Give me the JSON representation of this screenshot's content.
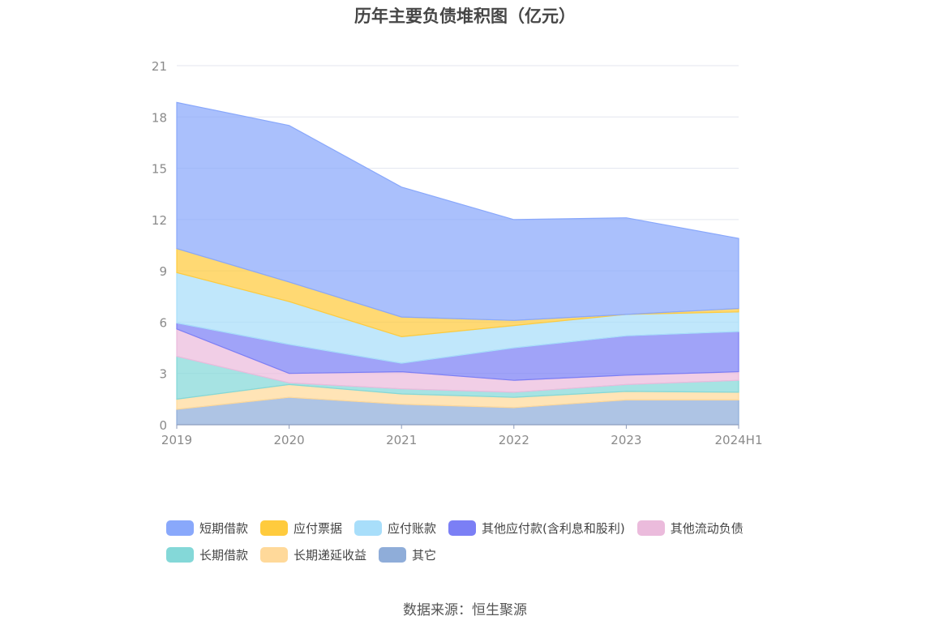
{
  "chart_data": {
    "type": "area",
    "stacked": true,
    "title": "历年主要负债堆积图（亿元）",
    "categories": [
      "2019",
      "2020",
      "2021",
      "2022",
      "2023",
      "2024H1"
    ],
    "ylim": [
      0,
      21
    ],
    "yticks": [
      "0",
      "3",
      "6",
      "9",
      "12",
      "15",
      "18",
      "21"
    ],
    "grid": true,
    "legend_position": "bottom",
    "series": [
      {
        "name": "其它",
        "color": "#8fadd9",
        "values": [
          0.9,
          1.6,
          1.2,
          1.0,
          1.45,
          1.45
        ]
      },
      {
        "name": "长期递延收益",
        "color": "#ffd99a",
        "values": [
          0.6,
          0.75,
          0.6,
          0.6,
          0.5,
          0.45
        ]
      },
      {
        "name": "长期借款",
        "color": "#84d8d8",
        "values": [
          2.5,
          0.1,
          0.3,
          0.3,
          0.4,
          0.7
        ]
      },
      {
        "name": "其他流动负债",
        "color": "#ebbbdc",
        "values": [
          1.6,
          0.55,
          1.0,
          0.7,
          0.55,
          0.5
        ]
      },
      {
        "name": "其他应付款(含利息和股利)",
        "color": "#7b7ff5",
        "values": [
          0.35,
          1.7,
          0.5,
          1.9,
          2.3,
          2.35
        ]
      },
      {
        "name": "应付账款",
        "color": "#a8defa",
        "values": [
          2.95,
          2.5,
          1.55,
          1.3,
          1.25,
          1.15
        ]
      },
      {
        "name": "应付票据",
        "color": "#ffcb3d",
        "values": [
          1.4,
          1.15,
          1.15,
          0.3,
          0.0,
          0.2
        ]
      },
      {
        "name": "短期借款",
        "color": "#89a8fb",
        "values": [
          8.55,
          9.15,
          7.6,
          5.9,
          5.65,
          4.1
        ]
      }
    ]
  },
  "legend": {
    "rows": [
      [
        {
          "label": "短期借款",
          "color": "#89a8fb"
        },
        {
          "label": "应付票据",
          "color": "#ffcb3d"
        },
        {
          "label": "应付账款",
          "color": "#a8defa"
        },
        {
          "label": "其他应付款(含利息和股利)",
          "color": "#7b7ff5"
        },
        {
          "label": "其他流动负债",
          "color": "#ebbbdc"
        }
      ],
      [
        {
          "label": "长期借款",
          "color": "#84d8d8"
        },
        {
          "label": "长期递延收益",
          "color": "#ffd99a"
        },
        {
          "label": "其它",
          "color": "#8fadd9"
        }
      ]
    ]
  },
  "source": "数据来源：恒生聚源"
}
